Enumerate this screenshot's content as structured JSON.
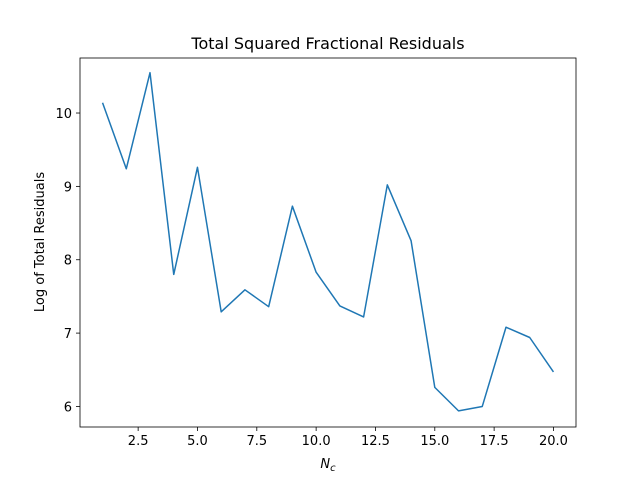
{
  "chart_data": {
    "type": "line",
    "title": "Total Squared Fractional Residuals",
    "xlabel": "N",
    "xlabel_subscript": "c",
    "ylabel": "Log of Total Residuals",
    "xlim": [
      0.05,
      20.95
    ],
    "ylim": [
      5.72,
      10.75
    ],
    "xticks": [
      2.5,
      5.0,
      7.5,
      10.0,
      12.5,
      15.0,
      17.5,
      20.0
    ],
    "xtick_labels": [
      "2.5",
      "5.0",
      "7.5",
      "10.0",
      "12.5",
      "15.0",
      "17.5",
      "20.0"
    ],
    "yticks": [
      6,
      7,
      8,
      9,
      10
    ],
    "ytick_labels": [
      "6",
      "7",
      "8",
      "9",
      "10"
    ],
    "grid": false,
    "series": [
      {
        "color": "#1f77b4",
        "x": [
          1,
          2,
          3,
          4,
          5,
          6,
          7,
          8,
          9,
          10,
          11,
          12,
          13,
          14,
          15,
          16,
          17,
          18,
          19,
          20
        ],
        "y": [
          10.14,
          9.24,
          10.55,
          7.8,
          9.26,
          7.29,
          7.59,
          7.36,
          8.73,
          7.83,
          7.37,
          7.22,
          9.02,
          8.26,
          6.26,
          5.94,
          6.0,
          7.08,
          6.94,
          6.47
        ]
      }
    ]
  }
}
